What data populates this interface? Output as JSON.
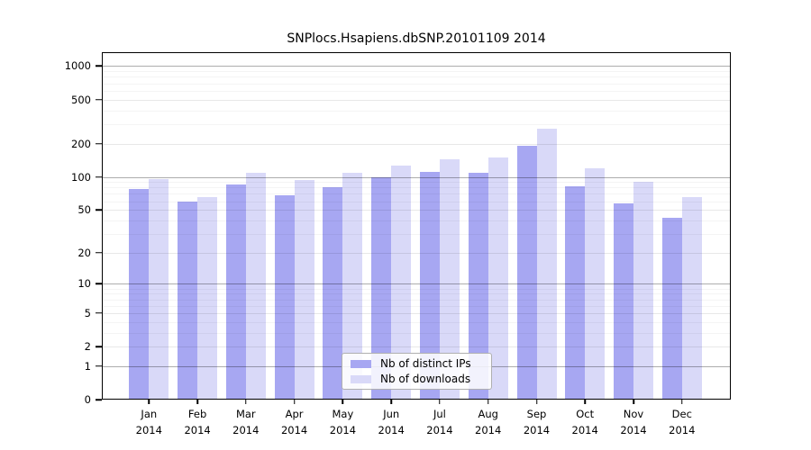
{
  "figure": {
    "title": "SNPlocs.Hsapiens.dbSNP.20101109 2014"
  },
  "chart_data": {
    "type": "bar",
    "title": "SNPlocs.Hsapiens.dbSNP.20101109 2014",
    "categories": [
      "Jan",
      "Feb",
      "Mar",
      "Apr",
      "May",
      "Jun",
      "Jul",
      "Aug",
      "Sep",
      "Oct",
      "Nov",
      "Dec"
    ],
    "x_sublabel": "2014",
    "series": [
      {
        "name": "Nb of distinct IPs",
        "color": "#a7a7f2",
        "values": [
          78,
          59,
          85,
          68,
          80,
          100,
          110,
          108,
          190,
          82,
          57,
          42
        ]
      },
      {
        "name": "Nb of downloads",
        "color": "#d9d9f8",
        "values": [
          95,
          66,
          108,
          93,
          108,
          127,
          145,
          150,
          275,
          120,
          90,
          66
        ]
      }
    ],
    "xlabel": "",
    "ylabel": "",
    "y_ticks": [
      0,
      1,
      2,
      5,
      10,
      20,
      50,
      100,
      200,
      500,
      1000
    ],
    "y_minor_ticks": [
      3,
      4,
      6,
      7,
      8,
      9,
      30,
      40,
      60,
      70,
      80,
      90,
      300,
      400,
      600,
      700,
      800,
      900
    ],
    "y_scale": "log10(1+x)",
    "ylim": [
      0,
      1280
    ],
    "grid": true,
    "legend_position": "lower center",
    "colors": {
      "axis": "#000000",
      "grid_major": "#b3b3b3",
      "grid_mid": "#e8e8e8",
      "grid_minor": "#f4f4f4",
      "background": "#ffffff"
    }
  }
}
